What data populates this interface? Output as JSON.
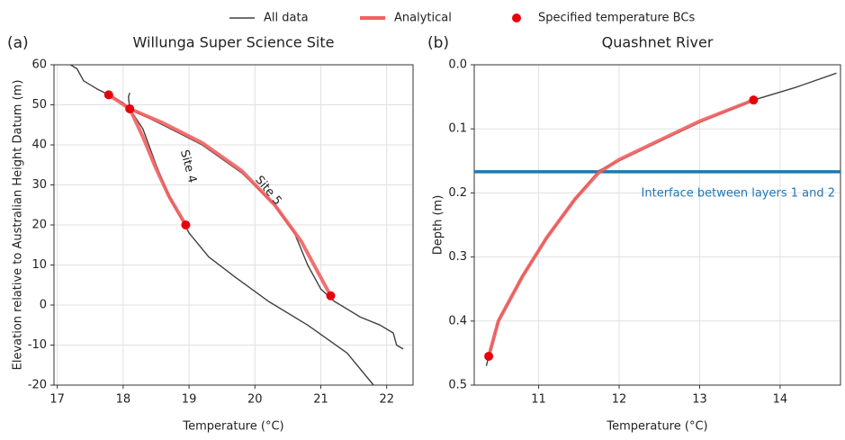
{
  "chart_data": [
    {
      "type": "line",
      "label": "(a)",
      "title": "Willunga Super Science Site",
      "xlabel": "Temperature (°C)",
      "ylabel": "Elevation relative to Australian Height Datum (m)",
      "xlim": [
        16.95,
        22.4
      ],
      "ylim": [
        -20,
        60
      ],
      "xticks": [
        17,
        18,
        19,
        20,
        21,
        22
      ],
      "yticks": [
        -20,
        -10,
        0,
        10,
        20,
        30,
        40,
        50,
        60
      ],
      "grid": true,
      "annotations": [
        "Site 4",
        "Site 5"
      ],
      "series": [
        {
          "name": "All data",
          "color": "#404040",
          "kind": "line",
          "x": [
            17.2,
            17.3,
            17.4,
            17.6,
            17.78,
            18.0,
            18.1,
            18.3,
            18.5,
            18.7,
            18.9,
            19.0,
            19.3,
            19.7,
            20.2,
            20.8,
            21.4,
            21.8,
            null,
            18.1,
            18.08,
            18.1,
            null,
            18.1,
            18.6,
            19.2,
            19.8,
            20.3,
            20.6,
            20.8,
            21.0,
            21.2,
            21.6,
            21.9,
            22.1,
            22.15,
            22.25
          ],
          "values": [
            60,
            59,
            56,
            54,
            52.5,
            50.5,
            49,
            44,
            35,
            27,
            21,
            18,
            12,
            7,
            1,
            -5,
            -12,
            -20,
            null,
            53,
            52,
            49,
            null,
            49,
            45,
            40,
            33,
            25,
            18,
            10,
            4,
            1,
            -3,
            -5,
            -7,
            -10,
            -11
          ]
        },
        {
          "name": "Analytical",
          "color": "#f26060",
          "kind": "line",
          "x": [
            17.78,
            18.1,
            18.6,
            19.2,
            19.8,
            20.3,
            20.7,
            21.15,
            null,
            18.1,
            18.3,
            18.5,
            18.7,
            18.95
          ],
          "values": [
            52.5,
            49,
            45.5,
            40.5,
            33.5,
            25,
            16,
            2.3,
            null,
            49,
            42,
            34,
            27,
            20
          ]
        },
        {
          "name": "Specified temperature BCs",
          "color": "#e8000b",
          "kind": "scatter",
          "x": [
            17.78,
            18.1,
            18.95,
            21.15
          ],
          "values": [
            52.5,
            49,
            20,
            2.3
          ]
        }
      ]
    },
    {
      "type": "line",
      "label": "(b)",
      "title": "Quashnet River",
      "xlabel": "Temperature (°C)",
      "ylabel": "Depth (m)",
      "xlim": [
        10.2,
        14.75
      ],
      "ylim": [
        0.5,
        0
      ],
      "yinvert": true,
      "xticks": [
        11,
        12,
        13,
        14
      ],
      "yticks": [
        {
          "value": 0,
          "label": "0.0"
        },
        0.1,
        0.2,
        0.3,
        0.4,
        0.5
      ],
      "grid": true,
      "hlines": [
        {
          "value": 0.167,
          "label": "Interface between layers 1 and 2",
          "color": "#1f77b4"
        }
      ],
      "series": [
        {
          "color": "#404040",
          "kind": "line",
          "x": [
            10.35,
            10.5,
            10.8,
            11.1,
            11.45,
            11.75,
            12.0,
            12.5,
            13.0,
            13.67,
            14.2,
            14.7
          ],
          "values": [
            0.47,
            0.4,
            0.33,
            0.27,
            0.21,
            0.165,
            0.15,
            0.12,
            0.09,
            0.055,
            0.035,
            0.013
          ]
        },
        {
          "color": "#f26060",
          "kind": "line",
          "x": [
            10.38,
            10.5,
            10.8,
            11.1,
            11.45,
            11.75,
            12.0,
            12.5,
            13.0,
            13.67
          ],
          "values": [
            0.455,
            0.4,
            0.33,
            0.27,
            0.21,
            0.168,
            0.148,
            0.118,
            0.088,
            0.055
          ]
        },
        {
          "color": "#e8000b",
          "kind": "scatter",
          "x": [
            10.38,
            13.67
          ],
          "values": [
            0.455,
            0.055
          ]
        }
      ]
    }
  ]
}
